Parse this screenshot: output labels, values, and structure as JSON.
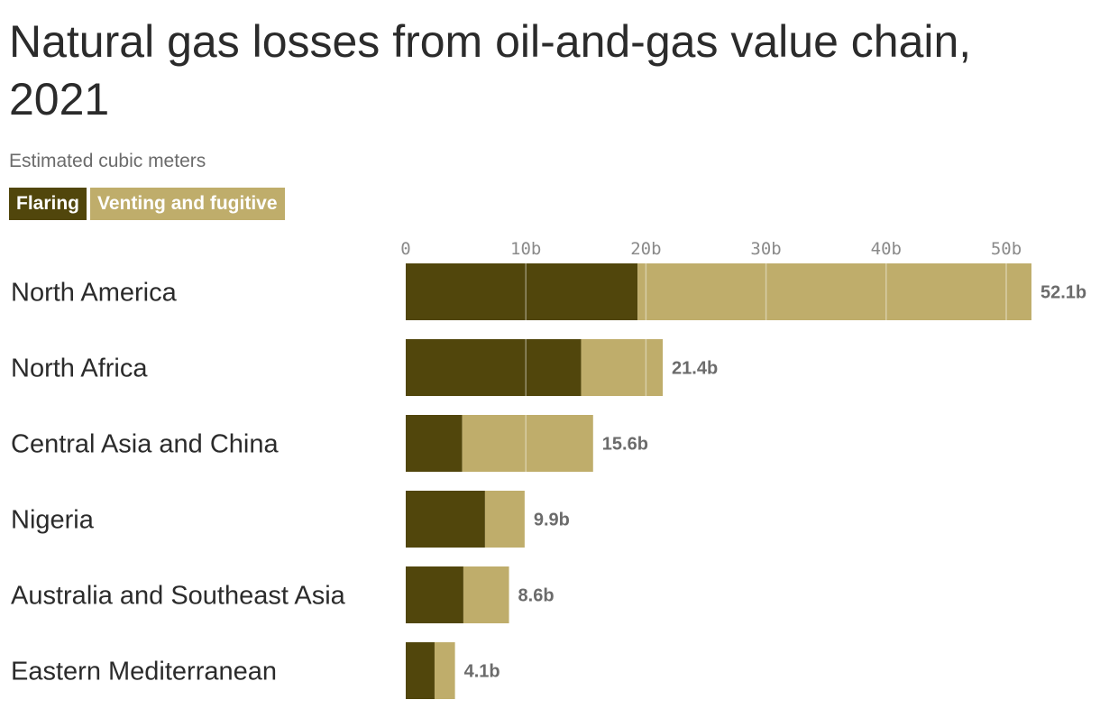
{
  "chart_data": {
    "type": "bar",
    "orientation": "horizontal",
    "stacked": true,
    "title": "Natural gas losses from oil-and-gas value chain, 2021",
    "subtitle": "Estimated cubic meters",
    "categories": [
      "North America",
      "North Africa",
      "Central Asia and China",
      "Nigeria",
      "Australia and Southeast Asia",
      "Eastern Mediterranean"
    ],
    "series": [
      {
        "name": "Flaring",
        "values": [
          19.3,
          14.6,
          4.7,
          6.6,
          4.8,
          2.4
        ],
        "color": "#51460c"
      },
      {
        "name": "Venting and fugitive",
        "values": [
          32.8,
          6.8,
          10.9,
          3.3,
          3.8,
          1.7
        ],
        "color": "#bfad6b"
      }
    ],
    "totals": [
      52.1,
      21.4,
      15.6,
      9.9,
      8.6,
      4.1
    ],
    "total_labels": [
      "52.1b",
      "21.4b",
      "15.6b",
      "9.9b",
      "8.6b",
      "4.1b"
    ],
    "xticks": [
      0,
      10,
      20,
      30,
      40,
      50
    ],
    "xtick_labels": [
      "0",
      "10b",
      "20b",
      "30b",
      "40b",
      "50b"
    ],
    "xlim": [
      0,
      52.1
    ],
    "grid": true,
    "legend_position": "top-left",
    "xlabel": "",
    "ylabel": ""
  }
}
